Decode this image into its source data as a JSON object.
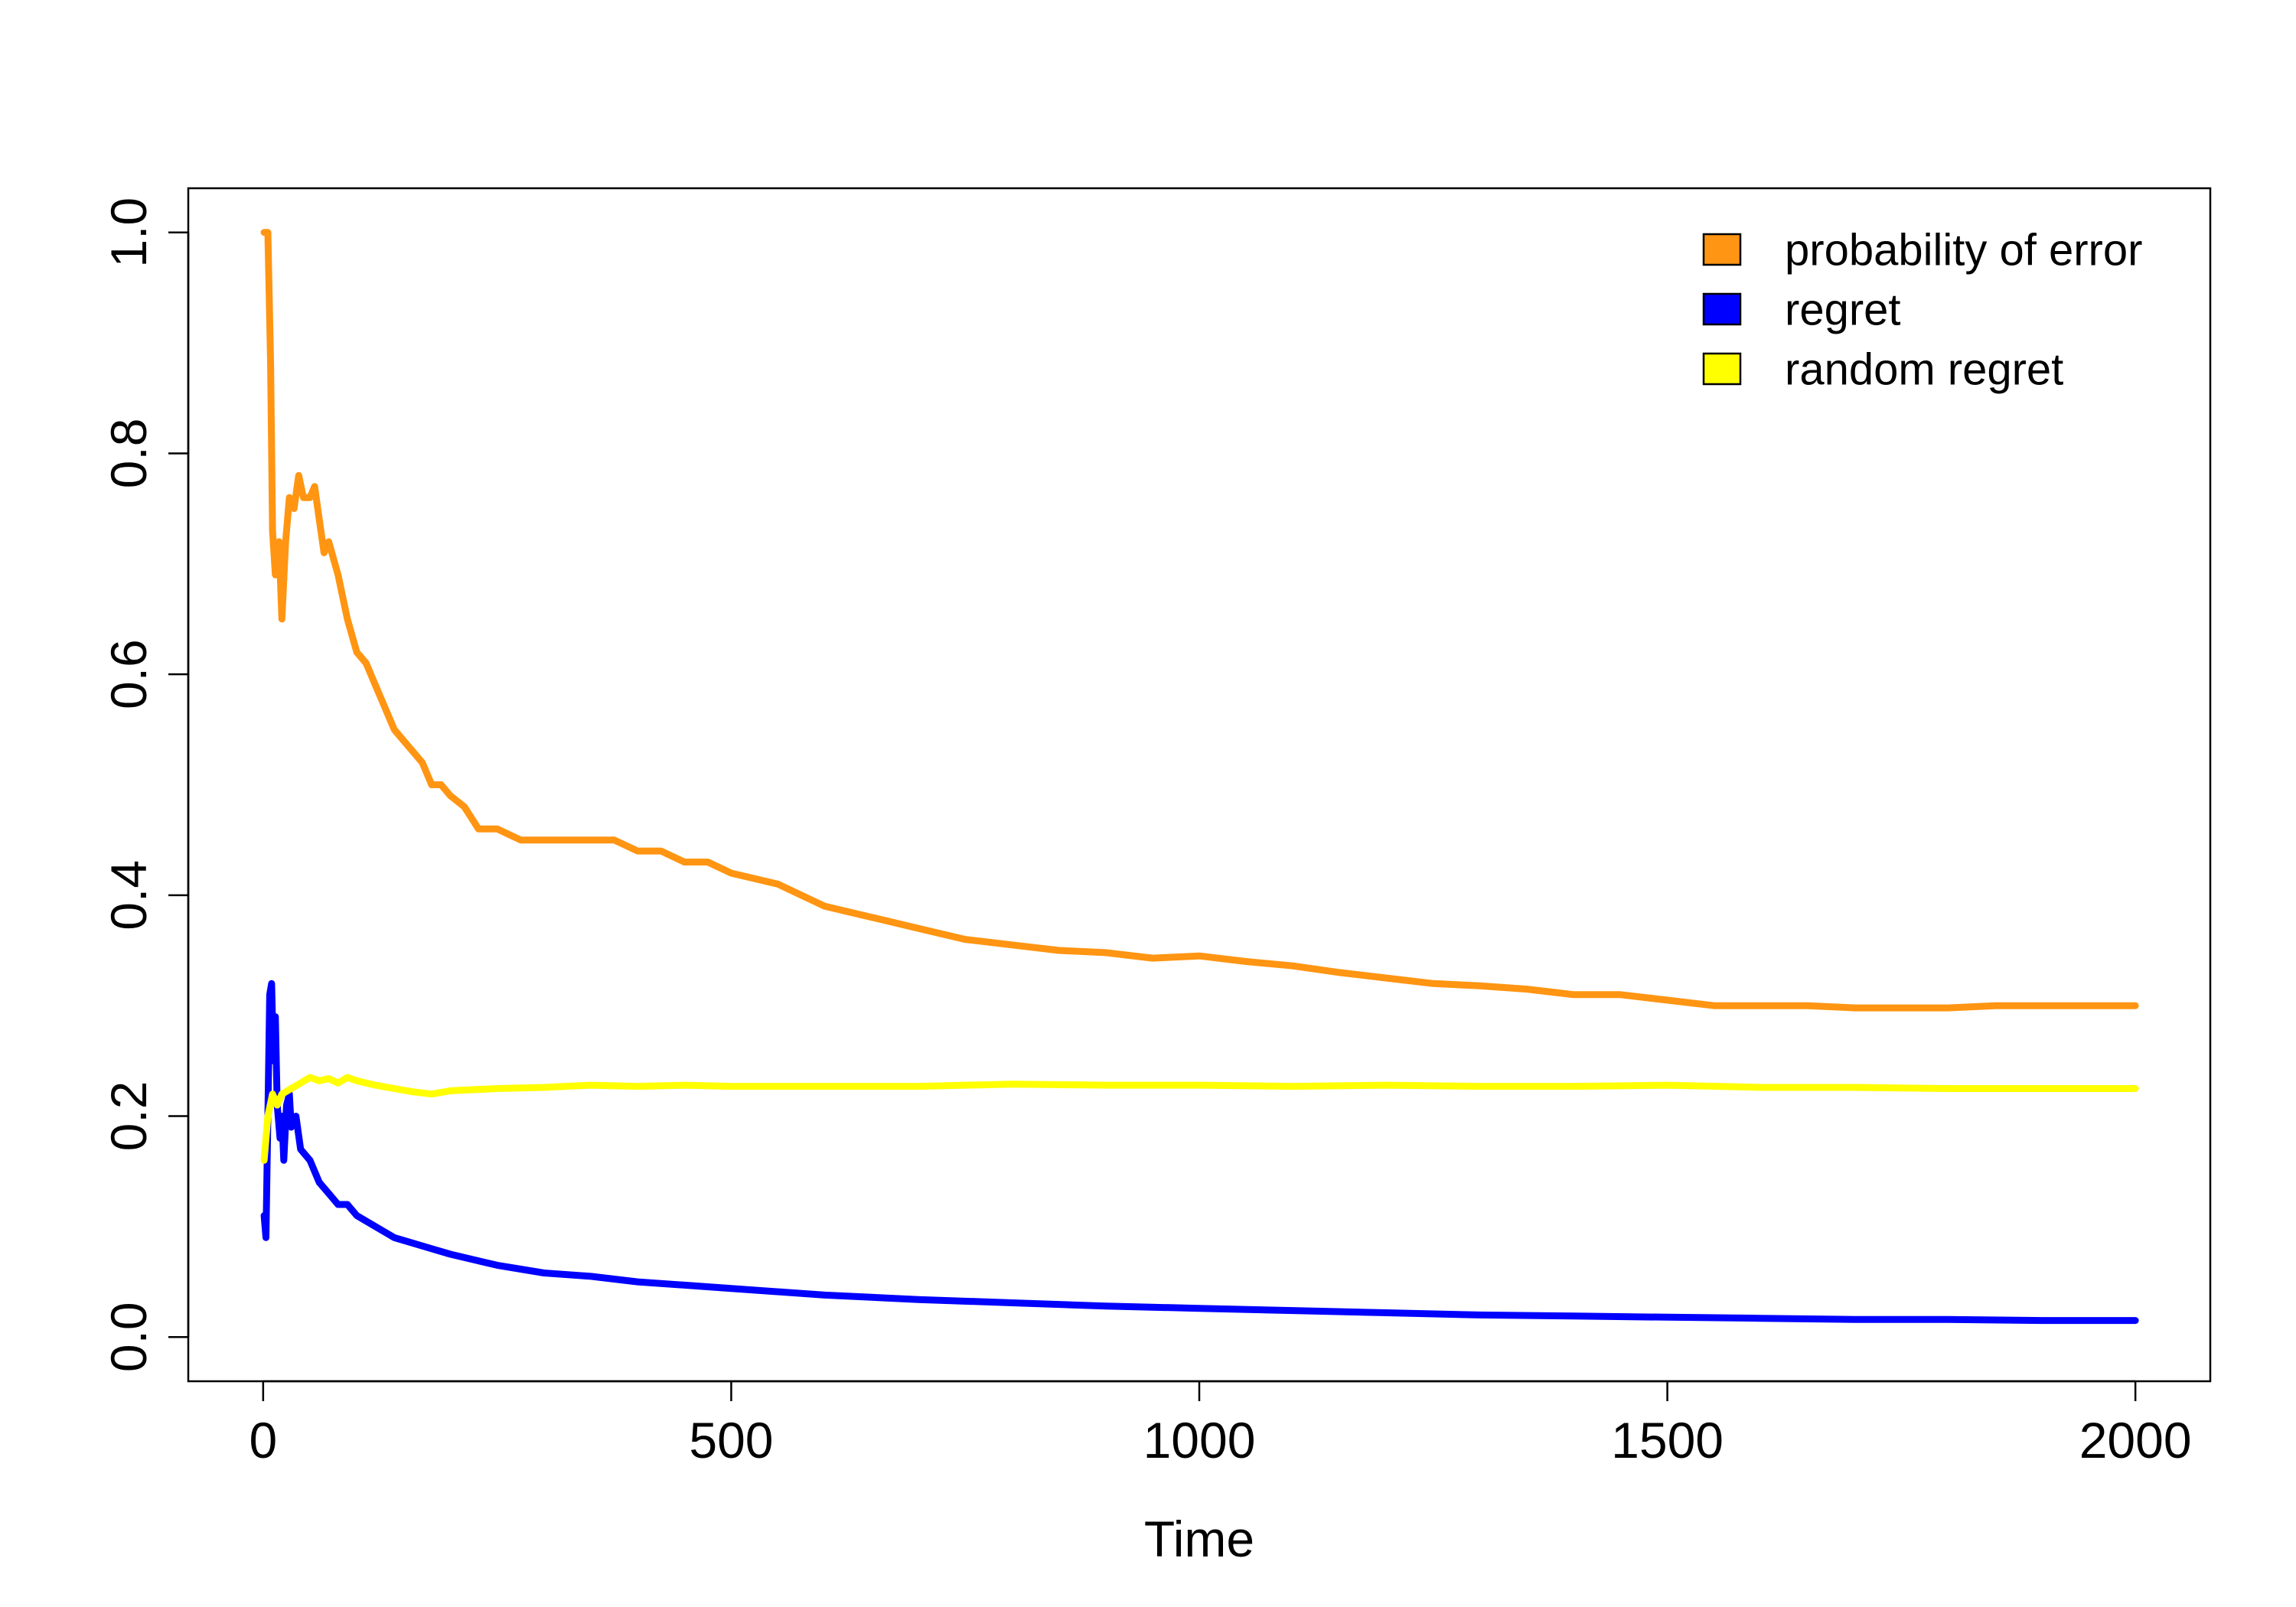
{
  "chart_data": {
    "type": "line",
    "title": "",
    "xlabel": "Time",
    "ylabel": "",
    "xlim": [
      -80,
      2080
    ],
    "ylim": [
      -0.04,
      1.04
    ],
    "x_ticks": [
      0,
      500,
      1000,
      1500,
      2000
    ],
    "x_tick_labels": [
      "0",
      "500",
      "1000",
      "1500",
      "2000"
    ],
    "y_ticks": [
      0.0,
      0.2,
      0.4,
      0.6,
      0.8,
      1.0
    ],
    "y_tick_labels": [
      "0.0",
      "0.2",
      "0.4",
      "0.6",
      "0.8",
      "1.0"
    ],
    "grid": false,
    "legend_position": "top-right",
    "series": [
      {
        "name": "probability of error",
        "color": "#ff9512",
        "x": [
          1,
          5,
          8,
          10,
          13,
          17,
          20,
          24,
          28,
          33,
          38,
          43,
          50,
          55,
          60,
          65,
          70,
          80,
          90,
          100,
          110,
          120,
          130,
          140,
          150,
          160,
          170,
          180,
          190,
          200,
          215,
          230,
          250,
          275,
          300,
          325,
          350,
          375,
          400,
          425,
          450,
          475,
          500,
          550,
          600,
          650,
          700,
          750,
          800,
          850,
          900,
          950,
          1000,
          1050,
          1100,
          1150,
          1200,
          1250,
          1300,
          1350,
          1400,
          1450,
          1500,
          1550,
          1600,
          1650,
          1700,
          1750,
          1800,
          1850,
          1900,
          1950,
          2000
        ],
        "y": [
          1.0,
          1.0,
          0.88,
          0.73,
          0.69,
          0.72,
          0.65,
          0.72,
          0.76,
          0.75,
          0.78,
          0.76,
          0.76,
          0.77,
          0.74,
          0.71,
          0.72,
          0.69,
          0.65,
          0.62,
          0.61,
          0.59,
          0.57,
          0.55,
          0.54,
          0.53,
          0.52,
          0.5,
          0.5,
          0.49,
          0.48,
          0.46,
          0.46,
          0.45,
          0.45,
          0.45,
          0.45,
          0.45,
          0.44,
          0.44,
          0.43,
          0.43,
          0.42,
          0.41,
          0.39,
          0.38,
          0.37,
          0.36,
          0.355,
          0.35,
          0.348,
          0.343,
          0.345,
          0.34,
          0.336,
          0.33,
          0.325,
          0.32,
          0.318,
          0.315,
          0.31,
          0.31,
          0.305,
          0.3,
          0.3,
          0.3,
          0.298,
          0.298,
          0.298,
          0.3,
          0.3,
          0.3,
          0.3
        ]
      },
      {
        "name": "regret",
        "color": "#0000ff",
        "x": [
          1,
          3,
          5,
          7,
          9,
          11,
          13,
          15,
          18,
          20,
          22,
          25,
          28,
          30,
          35,
          40,
          50,
          60,
          70,
          80,
          90,
          100,
          120,
          140,
          160,
          180,
          200,
          250,
          300,
          350,
          400,
          450,
          500,
          600,
          700,
          800,
          900,
          1000,
          1100,
          1200,
          1300,
          1400,
          1500,
          1600,
          1700,
          1800,
          1900,
          2000
        ],
        "y": [
          0.11,
          0.09,
          0.2,
          0.31,
          0.32,
          0.25,
          0.29,
          0.21,
          0.18,
          0.2,
          0.16,
          0.21,
          0.22,
          0.19,
          0.2,
          0.17,
          0.16,
          0.14,
          0.13,
          0.12,
          0.12,
          0.11,
          0.1,
          0.09,
          0.085,
          0.08,
          0.075,
          0.065,
          0.058,
          0.055,
          0.05,
          0.047,
          0.044,
          0.038,
          0.034,
          0.031,
          0.028,
          0.026,
          0.024,
          0.022,
          0.02,
          0.019,
          0.018,
          0.017,
          0.016,
          0.016,
          0.015,
          0.015
        ]
      },
      {
        "name": "random regret",
        "color": "#ffff00",
        "x": [
          1,
          5,
          10,
          15,
          20,
          30,
          40,
          50,
          60,
          70,
          80,
          90,
          100,
          120,
          140,
          160,
          180,
          200,
          250,
          300,
          350,
          400,
          450,
          500,
          600,
          700,
          800,
          900,
          1000,
          1100,
          1200,
          1300,
          1400,
          1500,
          1600,
          1700,
          1800,
          1900,
          2000
        ],
        "y": [
          0.16,
          0.2,
          0.22,
          0.21,
          0.22,
          0.225,
          0.23,
          0.235,
          0.232,
          0.234,
          0.23,
          0.235,
          0.232,
          0.228,
          0.225,
          0.222,
          0.22,
          0.223,
          0.225,
          0.226,
          0.228,
          0.227,
          0.228,
          0.227,
          0.227,
          0.227,
          0.229,
          0.228,
          0.228,
          0.227,
          0.228,
          0.227,
          0.227,
          0.228,
          0.226,
          0.226,
          0.225,
          0.225,
          0.225
        ]
      }
    ]
  }
}
